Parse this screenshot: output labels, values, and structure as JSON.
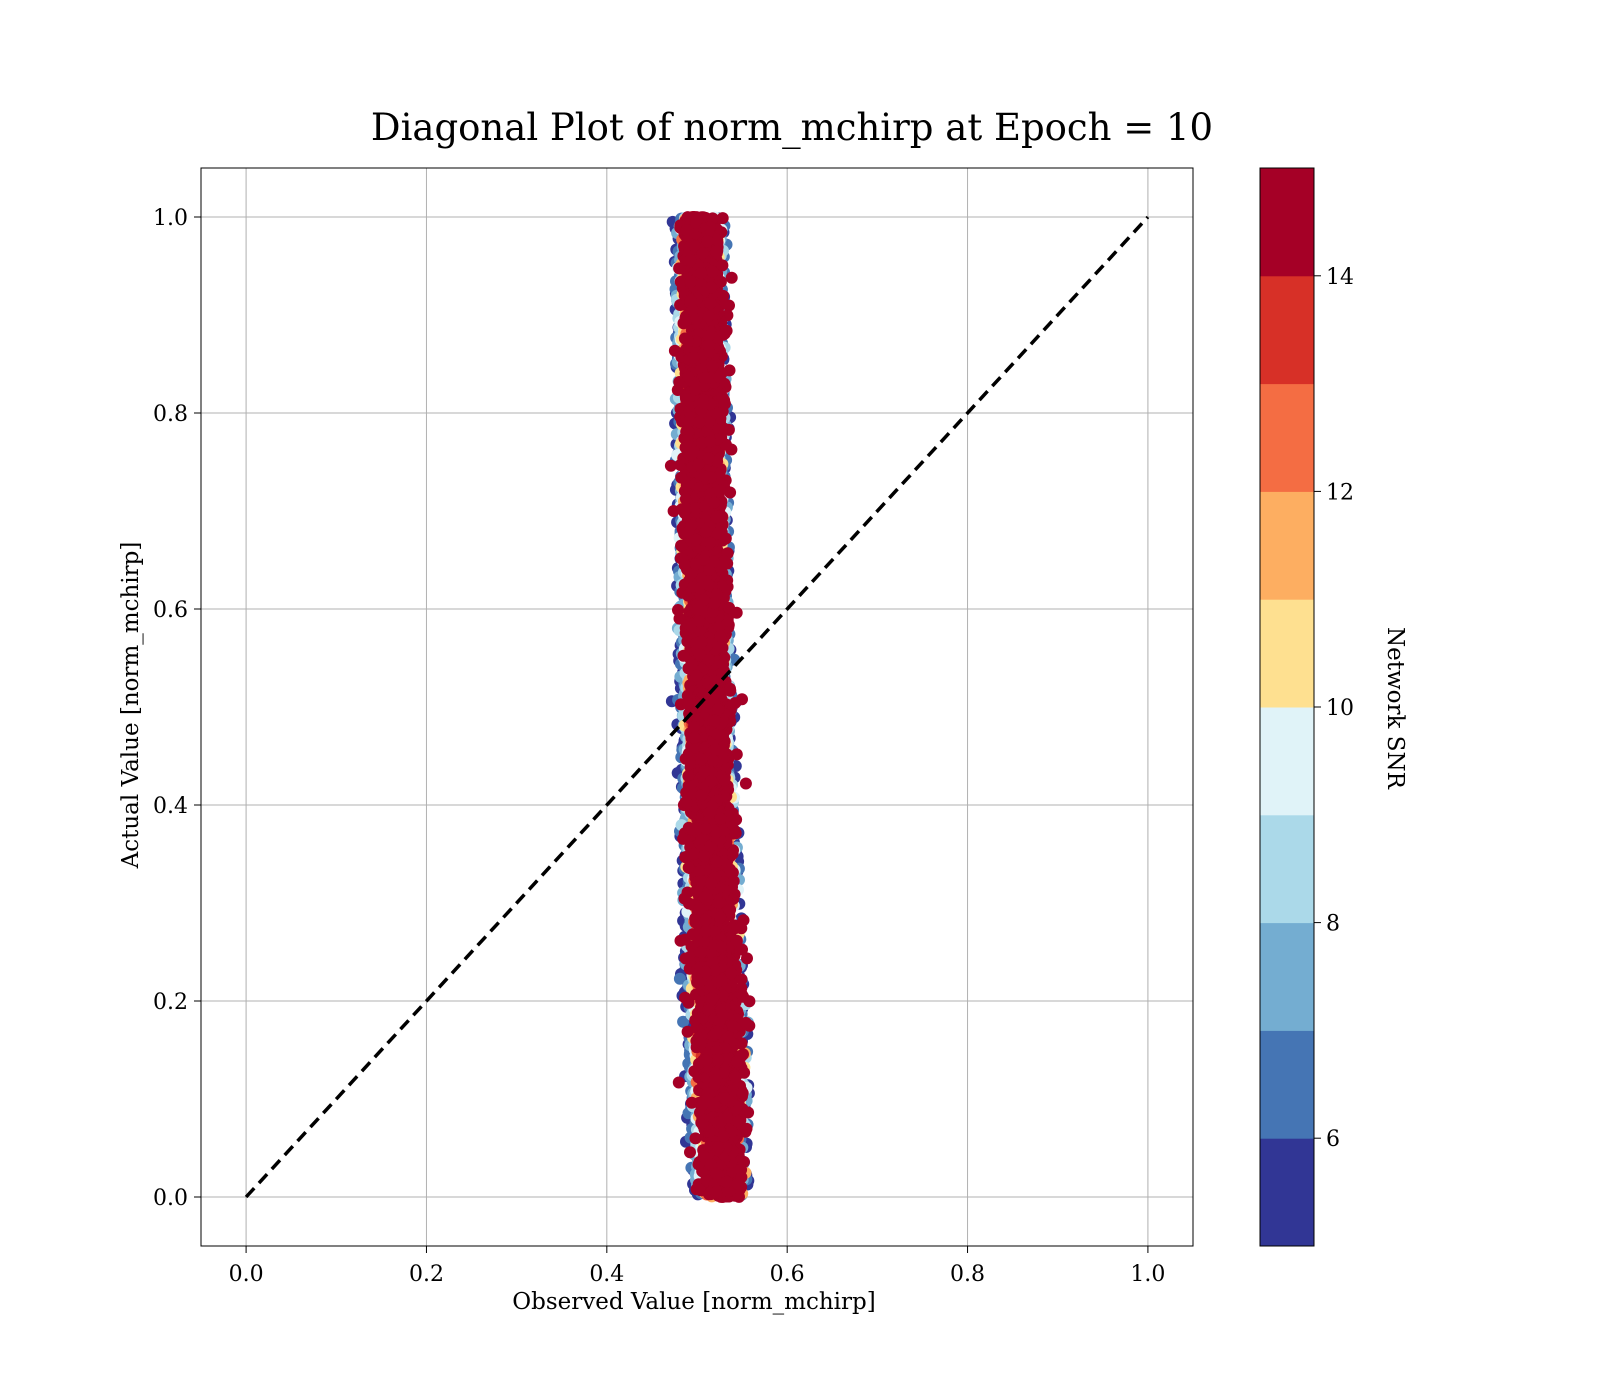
{
  "chart_data": {
    "type": "scatter",
    "title": "Diagonal Plot of norm_mchirp at Epoch = 10",
    "xlabel": "Observed Value [norm_mchirp]",
    "ylabel": "Actual Value [norm_mchirp]",
    "xlim": [
      -0.05,
      1.05
    ],
    "ylim": [
      -0.05,
      1.05
    ],
    "xticks": [
      "0.0",
      "0.2",
      "0.4",
      "0.6",
      "0.8",
      "1.0"
    ],
    "yticks": [
      "0.0",
      "0.2",
      "0.4",
      "0.6",
      "0.8",
      "1.0"
    ],
    "grid": true,
    "reference_line": {
      "style": "dashed",
      "color": "#000000",
      "from": [
        0.0,
        0.0
      ],
      "to": [
        1.0,
        1.0
      ]
    },
    "colorbar": {
      "label": "Network SNR",
      "range": [
        5,
        15
      ],
      "ticks": [
        "6",
        "8",
        "10",
        "12",
        "14"
      ],
      "tick_values": [
        6,
        8,
        10,
        12,
        14
      ],
      "colors": [
        "#313695",
        "#4575b4",
        "#74add1",
        "#abd9e9",
        "#e0f3f8",
        "#fee090",
        "#fdae61",
        "#f46d43",
        "#d73027",
        "#a50026"
      ]
    },
    "points": {
      "description_of_distribution": "vertical band of points; observed x centered ~0.505-0.53 across actual y 0.0-1.0; high-SNR points dominate the center",
      "x_center_at_y": [
        [
          0.0,
          0.528
        ],
        [
          0.1,
          0.527
        ],
        [
          0.2,
          0.522
        ],
        [
          0.3,
          0.518
        ],
        [
          0.4,
          0.515
        ],
        [
          0.5,
          0.512
        ],
        [
          0.6,
          0.51
        ],
        [
          0.7,
          0.508
        ],
        [
          0.8,
          0.507
        ],
        [
          0.9,
          0.506
        ],
        [
          1.0,
          0.505
        ]
      ],
      "x_spread_at_y": [
        [
          0.0,
          0.03
        ],
        [
          0.1,
          0.035
        ],
        [
          0.3,
          0.032
        ],
        [
          0.5,
          0.03
        ],
        [
          0.7,
          0.03
        ],
        [
          1.0,
          0.028
        ]
      ],
      "y_range": [
        0.0,
        1.0
      ],
      "count": 9000
    }
  }
}
